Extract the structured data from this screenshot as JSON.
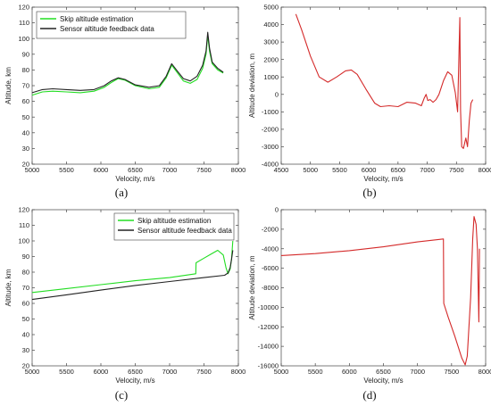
{
  "colors": {
    "green": "#22dd22",
    "black": "#222222",
    "red": "#d42a2a"
  },
  "chart_data": [
    {
      "type": "line",
      "caption": "(a)",
      "xlabel": "Velocity, m/s",
      "ylabel": "Altitude, km",
      "xlim": [
        5000,
        8000
      ],
      "ylim": [
        20,
        120
      ],
      "xticks": [
        5000,
        5500,
        6000,
        6500,
        7000,
        7500,
        8000
      ],
      "yticks": [
        20,
        30,
        40,
        50,
        60,
        70,
        80,
        90,
        100,
        110,
        120
      ],
      "legend": "top-left",
      "series": [
        {
          "name": "Skip altitude estimation",
          "color": "green",
          "points": [
            [
              5000,
              64
            ],
            [
              5150,
              66
            ],
            [
              5300,
              66.5
            ],
            [
              5500,
              66
            ],
            [
              5700,
              65.5
            ],
            [
              5900,
              66.5
            ],
            [
              6050,
              69
            ],
            [
              6150,
              72
            ],
            [
              6250,
              74.5
            ],
            [
              6350,
              73.5
            ],
            [
              6500,
              70
            ],
            [
              6700,
              68
            ],
            [
              6850,
              69
            ],
            [
              6950,
              75
            ],
            [
              7030,
              83
            ],
            [
              7100,
              79
            ],
            [
              7200,
              73
            ],
            [
              7300,
              71.5
            ],
            [
              7400,
              74
            ],
            [
              7480,
              81
            ],
            [
              7530,
              90
            ],
            [
              7555,
              102
            ],
            [
              7580,
              92
            ],
            [
              7620,
              84
            ],
            [
              7700,
              80
            ],
            [
              7780,
              78
            ]
          ]
        },
        {
          "name": "Sensor altitude feedback data",
          "color": "black",
          "points": [
            [
              5000,
              65.5
            ],
            [
              5150,
              67.5
            ],
            [
              5300,
              68
            ],
            [
              5500,
              67.5
            ],
            [
              5700,
              67
            ],
            [
              5900,
              67.5
            ],
            [
              6050,
              70
            ],
            [
              6150,
              73
            ],
            [
              6250,
              75
            ],
            [
              6350,
              74
            ],
            [
              6500,
              70.5
            ],
            [
              6700,
              69
            ],
            [
              6850,
              70
            ],
            [
              6950,
              76
            ],
            [
              7030,
              84
            ],
            [
              7100,
              80
            ],
            [
              7200,
              74.5
            ],
            [
              7300,
              73
            ],
            [
              7400,
              76
            ],
            [
              7480,
              83
            ],
            [
              7530,
              92
            ],
            [
              7555,
              104
            ],
            [
              7580,
              94
            ],
            [
              7620,
              85
            ],
            [
              7700,
              81
            ],
            [
              7780,
              78.5
            ]
          ]
        }
      ]
    },
    {
      "type": "line",
      "caption": "(b)",
      "xlabel": "Velocity, m/s",
      "ylabel": "Altitude deviation, m",
      "xlim": [
        4500,
        8000
      ],
      "ylim": [
        -4000,
        5000
      ],
      "xticks": [
        4500,
        5000,
        5500,
        6000,
        6500,
        7000,
        7500,
        8000
      ],
      "xticklabels": [
        "4500",
        "5000",
        "5500",
        "6000",
        "6500",
        "7000",
        "7500",
        "8000"
      ],
      "yticks": [
        -4000,
        -3000,
        -2000,
        -1000,
        0,
        1000,
        2000,
        3000,
        4000,
        5000
      ],
      "series": [
        {
          "color": "red",
          "points": [
            [
              4750,
              4600
            ],
            [
              4850,
              3700
            ],
            [
              5000,
              2200
            ],
            [
              5150,
              1000
            ],
            [
              5300,
              700
            ],
            [
              5450,
              1000
            ],
            [
              5600,
              1350
            ],
            [
              5700,
              1400
            ],
            [
              5800,
              1150
            ],
            [
              5950,
              300
            ],
            [
              6100,
              -500
            ],
            [
              6200,
              -700
            ],
            [
              6350,
              -650
            ],
            [
              6500,
              -700
            ],
            [
              6650,
              -450
            ],
            [
              6800,
              -500
            ],
            [
              6900,
              -650
            ],
            [
              6950,
              -200
            ],
            [
              6980,
              0
            ],
            [
              7010,
              -350
            ],
            [
              7050,
              -300
            ],
            [
              7100,
              -450
            ],
            [
              7150,
              -300
            ],
            [
              7200,
              0
            ],
            [
              7280,
              800
            ],
            [
              7350,
              1300
            ],
            [
              7420,
              1100
            ],
            [
              7480,
              100
            ],
            [
              7520,
              -1000
            ],
            [
              7545,
              2500
            ],
            [
              7558,
              4400
            ],
            [
              7570,
              -900
            ],
            [
              7590,
              -3000
            ],
            [
              7620,
              -3100
            ],
            [
              7660,
              -2500
            ],
            [
              7690,
              -3000
            ],
            [
              7720,
              -1500
            ],
            [
              7750,
              -500
            ],
            [
              7780,
              -300
            ]
          ]
        }
      ]
    },
    {
      "type": "line",
      "caption": "(c)",
      "xlabel": "Velocity, m/s",
      "ylabel": "Altitude, km",
      "xlim": [
        5000,
        8000
      ],
      "ylim": [
        20,
        120
      ],
      "xticks": [
        5000,
        5500,
        6000,
        6500,
        7000,
        7500,
        8000
      ],
      "yticks": [
        20,
        30,
        40,
        50,
        60,
        70,
        80,
        90,
        100,
        110,
        120
      ],
      "legend": "top-right",
      "series": [
        {
          "name": "Skip altitude estimation",
          "color": "green",
          "points": [
            [
              5000,
              67
            ],
            [
              5500,
              69.5
            ],
            [
              6000,
              72
            ],
            [
              6500,
              74.5
            ],
            [
              7000,
              76.5
            ],
            [
              7380,
              79
            ],
            [
              7385,
              86
            ],
            [
              7500,
              89
            ],
            [
              7600,
              91.5
            ],
            [
              7700,
              94
            ],
            [
              7780,
              91
            ],
            [
              7820,
              83
            ],
            [
              7850,
              79
            ],
            [
              7880,
              82
            ],
            [
              7900,
              88
            ],
            [
              7920,
              100
            ]
          ]
        },
        {
          "name": "Sensor altitude feedback data",
          "color": "black",
          "points": [
            [
              5000,
              62.5
            ],
            [
              5500,
              65.5
            ],
            [
              6000,
              68.5
            ],
            [
              6500,
              71.5
            ],
            [
              7000,
              74
            ],
            [
              7500,
              76.5
            ],
            [
              7800,
              78
            ],
            [
              7850,
              79.5
            ],
            [
              7880,
              83
            ],
            [
              7900,
              88
            ],
            [
              7920,
              94
            ]
          ]
        }
      ]
    },
    {
      "type": "line",
      "caption": "(d)",
      "xlabel": "Velocity, m/s",
      "ylabel": "Altitude deviation, m",
      "xlim": [
        5000,
        8000
      ],
      "ylim": [
        -16000,
        0
      ],
      "xticks": [
        5000,
        5500,
        6000,
        6500,
        7000,
        7500,
        8000
      ],
      "yticks": [
        -16000,
        -14000,
        -12000,
        -10000,
        -8000,
        -6000,
        -4000,
        -2000,
        0
      ],
      "series": [
        {
          "color": "red",
          "points": [
            [
              5000,
              -4700
            ],
            [
              5500,
              -4500
            ],
            [
              6000,
              -4200
            ],
            [
              6500,
              -3800
            ],
            [
              7000,
              -3300
            ],
            [
              7380,
              -3000
            ],
            [
              7385,
              -9600
            ],
            [
              7450,
              -11000
            ],
            [
              7550,
              -13000
            ],
            [
              7650,
              -15200
            ],
            [
              7700,
              -15900
            ],
            [
              7730,
              -15000
            ],
            [
              7780,
              -9000
            ],
            [
              7810,
              -3000
            ],
            [
              7830,
              -700
            ],
            [
              7860,
              -1500
            ],
            [
              7880,
              -4000
            ],
            [
              7900,
              -11500
            ],
            [
              7910,
              -4000
            ]
          ]
        }
      ]
    }
  ]
}
